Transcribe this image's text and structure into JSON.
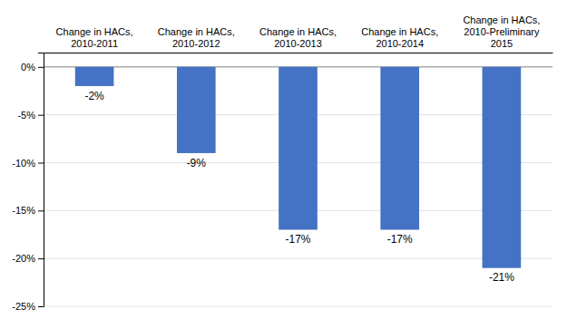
{
  "chart_data": {
    "type": "bar",
    "categories": [
      "Change in HACs,\n2010-2011",
      "Change in HACs,\n2010-2012",
      "Change in HACs,\n2010-2013",
      "Change in HACs,\n2010-2014",
      "Change in HACs,\n2010-Preliminary\n2015"
    ],
    "values": [
      -2,
      -9,
      -17,
      -17,
      -21
    ],
    "value_labels": [
      "-2%",
      "-9%",
      "-17%",
      "-17%",
      "-21%"
    ],
    "color": "#4472C4",
    "ylim": [
      -25,
      1.5
    ],
    "yticks": [
      {
        "value": 0,
        "label": "0%"
      },
      {
        "value": -5,
        "label": "-5%"
      },
      {
        "value": -10,
        "label": "-10%"
      },
      {
        "value": -15,
        "label": "-15%"
      },
      {
        "value": -20,
        "label": "-20%"
      },
      {
        "value": -25,
        "label": "-25%"
      }
    ],
    "grid": true,
    "data_labels": true
  }
}
